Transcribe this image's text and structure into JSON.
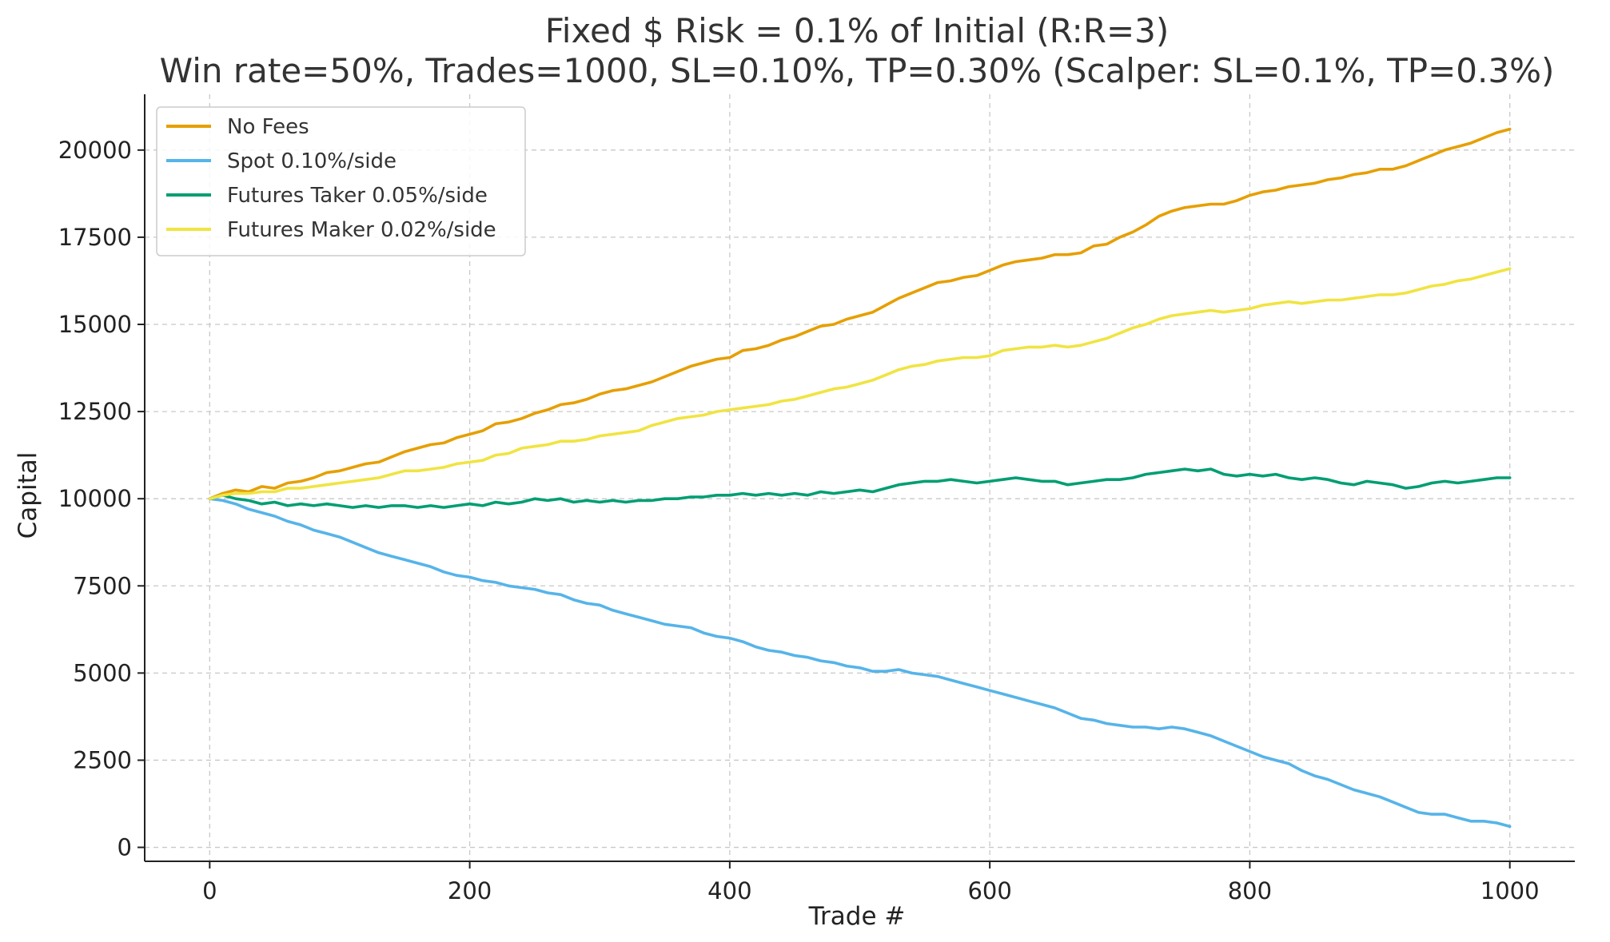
{
  "chart_data": {
    "type": "line",
    "title": "Fixed $ Risk = 0.1% of Initial (R:R=3)",
    "subtitle": "Win rate=50%, Trades=1000, SL=0.10%, TP=0.30% (Scalper: SL=0.1%, TP=0.3%)",
    "xlabel": "Trade #",
    "ylabel": "Capital",
    "xlim": [
      -50,
      1050
    ],
    "ylim": [
      -400,
      21600
    ],
    "xticks": [
      0,
      200,
      400,
      600,
      800,
      1000
    ],
    "yticks": [
      0,
      2500,
      5000,
      7500,
      10000,
      12500,
      15000,
      17500,
      20000
    ],
    "grid": true,
    "legend_position": "top-left",
    "series": [
      {
        "name": "No Fees",
        "color": "#E69F00",
        "x": [
          0,
          10,
          20,
          30,
          40,
          50,
          60,
          70,
          80,
          90,
          100,
          110,
          120,
          130,
          140,
          150,
          160,
          170,
          180,
          190,
          200,
          210,
          220,
          230,
          240,
          250,
          260,
          270,
          280,
          290,
          300,
          310,
          320,
          330,
          340,
          350,
          360,
          370,
          380,
          390,
          400,
          410,
          420,
          430,
          440,
          450,
          460,
          470,
          480,
          490,
          500,
          510,
          520,
          530,
          540,
          550,
          560,
          570,
          580,
          590,
          600,
          610,
          620,
          630,
          640,
          650,
          660,
          670,
          680,
          690,
          700,
          710,
          720,
          730,
          740,
          750,
          760,
          770,
          780,
          790,
          800,
          810,
          820,
          830,
          840,
          850,
          860,
          870,
          880,
          890,
          900,
          910,
          920,
          930,
          940,
          950,
          960,
          970,
          980,
          990,
          1000
        ],
        "y": [
          10000,
          10150,
          10250,
          10200,
          10350,
          10300,
          10450,
          10500,
          10600,
          10750,
          10800,
          10900,
          11000,
          11050,
          11200,
          11350,
          11450,
          11550,
          11600,
          11750,
          11850,
          11950,
          12150,
          12200,
          12300,
          12450,
          12550,
          12700,
          12750,
          12850,
          13000,
          13100,
          13150,
          13250,
          13350,
          13500,
          13650,
          13800,
          13900,
          14000,
          14050,
          14250,
          14300,
          14400,
          14550,
          14650,
          14800,
          14950,
          15000,
          15150,
          15250,
          15350,
          15550,
          15750,
          15900,
          16050,
          16200,
          16250,
          16350,
          16400,
          16550,
          16700,
          16800,
          16850,
          16900,
          17000,
          17000,
          17050,
          17250,
          17300,
          17500,
          17650,
          17850,
          18100,
          18250,
          18350,
          18400,
          18450,
          18450,
          18550,
          18700,
          18800,
          18850,
          18950,
          19000,
          19050,
          19150,
          19200,
          19300,
          19350,
          19450,
          19450,
          19550,
          19700,
          19850,
          20000,
          20100,
          20200,
          20350,
          20500,
          20600
        ]
      },
      {
        "name": "Spot 0.10%/side",
        "color": "#56B4E9",
        "x": [
          0,
          10,
          20,
          30,
          40,
          50,
          60,
          70,
          80,
          90,
          100,
          110,
          120,
          130,
          140,
          150,
          160,
          170,
          180,
          190,
          200,
          210,
          220,
          230,
          240,
          250,
          260,
          270,
          280,
          290,
          300,
          310,
          320,
          330,
          340,
          350,
          360,
          370,
          380,
          390,
          400,
          410,
          420,
          430,
          440,
          450,
          460,
          470,
          480,
          490,
          500,
          510,
          520,
          530,
          540,
          550,
          560,
          570,
          580,
          590,
          600,
          610,
          620,
          630,
          640,
          650,
          660,
          670,
          680,
          690,
          700,
          710,
          720,
          730,
          740,
          750,
          760,
          770,
          780,
          790,
          800,
          810,
          820,
          830,
          840,
          850,
          860,
          870,
          880,
          890,
          900,
          910,
          920,
          930,
          940,
          950,
          960,
          970,
          980,
          990,
          1000
        ],
        "y": [
          10000,
          9950,
          9850,
          9700,
          9600,
          9500,
          9350,
          9250,
          9100,
          9000,
          8900,
          8750,
          8600,
          8450,
          8350,
          8250,
          8150,
          8050,
          7900,
          7800,
          7750,
          7650,
          7600,
          7500,
          7450,
          7400,
          7300,
          7250,
          7100,
          7000,
          6950,
          6800,
          6700,
          6600,
          6500,
          6400,
          6350,
          6300,
          6150,
          6050,
          6000,
          5900,
          5750,
          5650,
          5600,
          5500,
          5450,
          5350,
          5300,
          5200,
          5150,
          5050,
          5050,
          5100,
          5000,
          4950,
          4900,
          4800,
          4700,
          4600,
          4500,
          4400,
          4300,
          4200,
          4100,
          4000,
          3850,
          3700,
          3650,
          3550,
          3500,
          3450,
          3450,
          3400,
          3450,
          3400,
          3300,
          3200,
          3050,
          2900,
          2750,
          2600,
          2500,
          2400,
          2200,
          2050,
          1950,
          1800,
          1650,
          1550,
          1450,
          1300,
          1150,
          1000,
          950,
          950,
          850,
          750,
          750,
          700,
          600
        ]
      },
      {
        "name": "Futures Taker 0.05%/side",
        "color": "#009E73",
        "x": [
          0,
          10,
          20,
          30,
          40,
          50,
          60,
          70,
          80,
          90,
          100,
          110,
          120,
          130,
          140,
          150,
          160,
          170,
          180,
          190,
          200,
          210,
          220,
          230,
          240,
          250,
          260,
          270,
          280,
          290,
          300,
          310,
          320,
          330,
          340,
          350,
          360,
          370,
          380,
          390,
          400,
          410,
          420,
          430,
          440,
          450,
          460,
          470,
          480,
          490,
          500,
          510,
          520,
          530,
          540,
          550,
          560,
          570,
          580,
          590,
          600,
          610,
          620,
          630,
          640,
          650,
          660,
          670,
          680,
          690,
          700,
          710,
          720,
          730,
          740,
          750,
          760,
          770,
          780,
          790,
          800,
          810,
          820,
          830,
          840,
          850,
          860,
          870,
          880,
          890,
          900,
          910,
          920,
          930,
          940,
          950,
          960,
          970,
          980,
          990,
          1000
        ],
        "y": [
          10000,
          10100,
          10000,
          9950,
          9850,
          9900,
          9800,
          9850,
          9800,
          9850,
          9800,
          9750,
          9800,
          9750,
          9800,
          9800,
          9750,
          9800,
          9750,
          9800,
          9850,
          9800,
          9900,
          9850,
          9900,
          10000,
          9950,
          10000,
          9900,
          9950,
          9900,
          9950,
          9900,
          9950,
          9950,
          10000,
          10000,
          10050,
          10050,
          10100,
          10100,
          10150,
          10100,
          10150,
          10100,
          10150,
          10100,
          10200,
          10150,
          10200,
          10250,
          10200,
          10300,
          10400,
          10450,
          10500,
          10500,
          10550,
          10500,
          10450,
          10500,
          10550,
          10600,
          10550,
          10500,
          10500,
          10400,
          10450,
          10500,
          10550,
          10550,
          10600,
          10700,
          10750,
          10800,
          10850,
          10800,
          10850,
          10700,
          10650,
          10700,
          10650,
          10700,
          10600,
          10550,
          10600,
          10550,
          10450,
          10400,
          10500,
          10450,
          10400,
          10300,
          10350,
          10450,
          10500,
          10450,
          10500,
          10550,
          10600,
          10600
        ]
      },
      {
        "name": "Futures Maker 0.02%/side",
        "color": "#F0E442",
        "x": [
          0,
          10,
          20,
          30,
          40,
          50,
          60,
          70,
          80,
          90,
          100,
          110,
          120,
          130,
          140,
          150,
          160,
          170,
          180,
          190,
          200,
          210,
          220,
          230,
          240,
          250,
          260,
          270,
          280,
          290,
          300,
          310,
          320,
          330,
          340,
          350,
          360,
          370,
          380,
          390,
          400,
          410,
          420,
          430,
          440,
          450,
          460,
          470,
          480,
          490,
          500,
          510,
          520,
          530,
          540,
          550,
          560,
          570,
          580,
          590,
          600,
          610,
          620,
          630,
          640,
          650,
          660,
          670,
          680,
          690,
          700,
          710,
          720,
          730,
          740,
          750,
          760,
          770,
          780,
          790,
          800,
          810,
          820,
          830,
          840,
          850,
          860,
          870,
          880,
          890,
          900,
          910,
          920,
          930,
          940,
          950,
          960,
          970,
          980,
          990,
          1000
        ],
        "y": [
          10000,
          10100,
          10150,
          10150,
          10200,
          10200,
          10300,
          10300,
          10350,
          10400,
          10450,
          10500,
          10550,
          10600,
          10700,
          10800,
          10800,
          10850,
          10900,
          11000,
          11050,
          11100,
          11250,
          11300,
          11450,
          11500,
          11550,
          11650,
          11650,
          11700,
          11800,
          11850,
          11900,
          11950,
          12100,
          12200,
          12300,
          12350,
          12400,
          12500,
          12550,
          12600,
          12650,
          12700,
          12800,
          12850,
          12950,
          13050,
          13150,
          13200,
          13300,
          13400,
          13550,
          13700,
          13800,
          13850,
          13950,
          14000,
          14050,
          14050,
          14100,
          14250,
          14300,
          14350,
          14350,
          14400,
          14350,
          14400,
          14500,
          14600,
          14750,
          14900,
          15000,
          15150,
          15250,
          15300,
          15350,
          15400,
          15350,
          15400,
          15450,
          15550,
          15600,
          15650,
          15600,
          15650,
          15700,
          15700,
          15750,
          15800,
          15850,
          15850,
          15900,
          16000,
          16100,
          16150,
          16250,
          16300,
          16400,
          16500,
          16600
        ]
      }
    ]
  }
}
